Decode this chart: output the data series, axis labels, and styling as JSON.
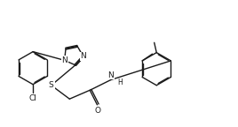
{
  "bg_color": "#ffffff",
  "line_color": "#1a1a1a",
  "lw": 1.0,
  "fs": 6.5,
  "dbl_off": 0.018,
  "xlim": [
    0.0,
    5.2
  ],
  "ylim": [
    -1.0,
    1.6
  ],
  "hex_r": 0.36,
  "im_r": 0.22,
  "cl_label": "Cl",
  "s_label": "S",
  "o_label": "O",
  "n1_label": "N",
  "n3_label": "N",
  "nh_label": "N",
  "h_label": "H"
}
